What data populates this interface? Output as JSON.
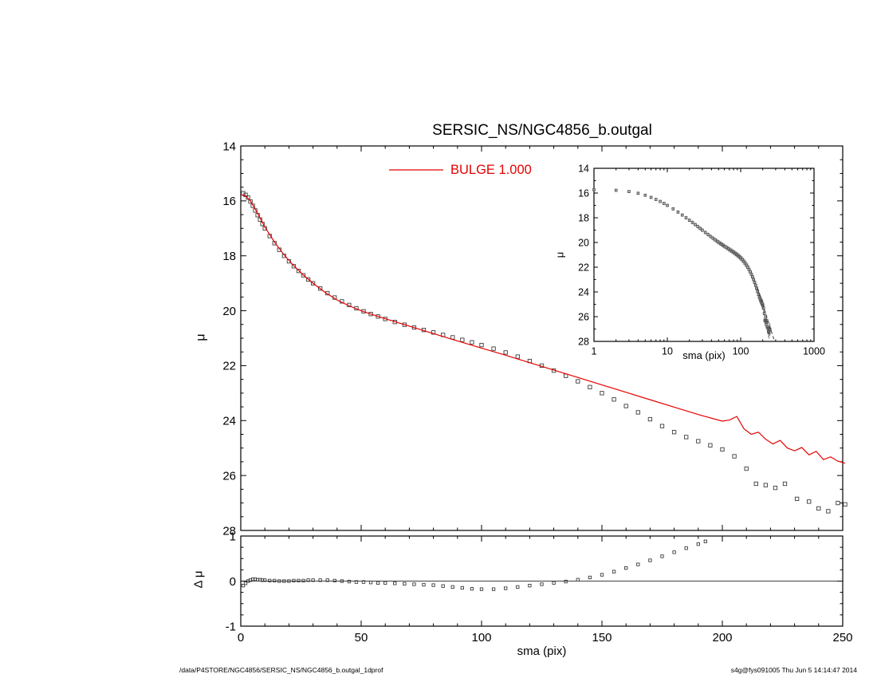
{
  "title": "SERSIC_NS/NGC4856_b.outgal",
  "legend": {
    "label": "BULGE  1.000",
    "color": "#e60000"
  },
  "footer": {
    "left": "/data/P4STORE/NGC4856/SERSIC_NS/NGC4856_b.outgal_1dprof",
    "right": "s4g@fys091005  Thu Jun  5 14:14:47 2014"
  },
  "colors": {
    "model": "#e60000",
    "data_marker": "#3c3c3c",
    "axis": "#000000",
    "error_bar": "#909090"
  },
  "chart_data": [
    {
      "type": "scatter",
      "name": "main-profile",
      "xlabel": "sma (pix)",
      "ylabel": "μ",
      "xlim": [
        0,
        250
      ],
      "ylim": [
        14,
        28
      ],
      "xticks": [
        0,
        50,
        100,
        150,
        200,
        250
      ],
      "yticks": [
        14,
        16,
        18,
        20,
        22,
        24,
        26,
        28
      ],
      "xminor": 10,
      "yminor": 0.5,
      "xlabels": false,
      "series": [
        {
          "name": "surface-brightness-data",
          "marker": "open-square",
          "size": 4.4,
          "color": "#3c3c3c",
          "x": [
            1,
            2,
            3,
            4,
            5,
            6,
            7,
            8,
            9,
            10,
            12,
            14,
            16,
            18,
            20,
            22,
            24,
            26,
            28,
            30,
            33,
            36,
            39,
            42,
            45,
            48,
            51,
            54,
            57,
            60,
            64,
            68,
            72,
            76,
            80,
            84,
            88,
            92,
            96,
            100,
            105,
            110,
            115,
            120,
            125,
            130,
            135,
            140,
            145,
            150,
            155,
            160,
            165,
            170,
            175,
            180,
            185,
            190,
            195,
            200,
            205,
            210,
            214,
            218,
            222,
            226,
            231,
            236,
            240,
            244,
            248,
            251
          ],
          "y": [
            15.72,
            15.78,
            15.88,
            16.02,
            16.18,
            16.35,
            16.52,
            16.68,
            16.84,
            17.0,
            17.28,
            17.54,
            17.78,
            18.0,
            18.2,
            18.38,
            18.55,
            18.71,
            18.86,
            19.0,
            19.19,
            19.36,
            19.52,
            19.66,
            19.79,
            19.91,
            20.02,
            20.12,
            20.21,
            20.3,
            20.41,
            20.51,
            20.61,
            20.7,
            20.79,
            20.88,
            20.97,
            21.06,
            21.15,
            21.25,
            21.38,
            21.52,
            21.67,
            21.83,
            22.0,
            22.18,
            22.37,
            22.57,
            22.78,
            23.0,
            23.23,
            23.47,
            23.7,
            23.95,
            24.2,
            24.42,
            24.6,
            24.75,
            24.9,
            25.05,
            25.3,
            25.75,
            26.3,
            26.35,
            26.45,
            26.3,
            26.85,
            26.95,
            27.2,
            27.3,
            27.0,
            27.05
          ]
        },
        {
          "name": "BULGE 1.000",
          "type": "line",
          "color": "#e60000",
          "width": 1.2,
          "x": [
            0,
            2,
            4,
            6,
            8,
            10,
            14,
            18,
            22,
            26,
            30,
            35,
            40,
            45,
            50,
            55,
            60,
            70,
            80,
            90,
            100,
            110,
            120,
            130,
            140,
            150,
            160,
            170,
            180,
            190,
            200,
            203,
            206,
            209,
            212,
            215,
            218,
            221,
            224,
            227,
            230,
            233,
            236,
            239,
            242,
            245,
            248,
            251
          ],
          "y": [
            15.78,
            15.82,
            16.0,
            16.3,
            16.62,
            16.95,
            17.5,
            17.97,
            18.36,
            18.7,
            19.0,
            19.33,
            19.61,
            19.82,
            20.0,
            20.15,
            20.29,
            20.56,
            20.83,
            21.1,
            21.36,
            21.62,
            21.89,
            22.16,
            22.43,
            22.7,
            22.97,
            23.24,
            23.51,
            23.78,
            24.02,
            23.98,
            23.85,
            24.3,
            24.5,
            24.42,
            24.68,
            24.85,
            24.72,
            25.0,
            25.1,
            24.98,
            25.25,
            25.12,
            25.42,
            25.32,
            25.48,
            25.55
          ]
        }
      ]
    },
    {
      "type": "scatter",
      "name": "inset-log-profile",
      "xscale": "log",
      "xlabel": "sma (pix)",
      "ylabel": "μ",
      "xlim": [
        1,
        1000
      ],
      "ylim": [
        14,
        28
      ],
      "xticks": [
        1,
        10,
        100,
        1000
      ],
      "yticks": [
        14,
        16,
        18,
        20,
        22,
        24,
        26,
        28
      ],
      "yminor": 1,
      "opaque": true,
      "error_model": {
        "base": 0.12,
        "slope": 0.0015
      },
      "series": [
        {
          "name": "surface-brightness-data-log",
          "ref": "0.0",
          "marker": "open-square",
          "size": 2.8,
          "color": "#555555",
          "errors": true,
          "error_color": "#909090"
        },
        {
          "name": "extrapolation-dashed",
          "type": "line",
          "color": "#333333",
          "width": 1,
          "dash": "4,3",
          "x": [
            170,
            290
          ],
          "y": [
            23.7,
            28.0
          ]
        }
      ]
    },
    {
      "type": "scatter",
      "name": "residual-panel",
      "xlabel": "sma (pix)",
      "ylabel": "Δ μ",
      "xlim": [
        0,
        250
      ],
      "ylim": [
        1,
        -1
      ],
      "xticks": [
        0,
        50,
        100,
        150,
        200,
        250
      ],
      "yticks": [
        1,
        0,
        -1
      ],
      "xminor": 10,
      "yminor": 0.25,
      "hline": 0,
      "series": [
        {
          "name": "residual-data",
          "marker": "open-square",
          "size": 3.4,
          "color": "#3c3c3c",
          "x": [
            1,
            2,
            3,
            4,
            5,
            6,
            7,
            8,
            9,
            10,
            12,
            14,
            16,
            18,
            20,
            22,
            24,
            26,
            28,
            30,
            33,
            36,
            39,
            42,
            45,
            48,
            51,
            54,
            57,
            60,
            64,
            68,
            72,
            76,
            80,
            84,
            88,
            92,
            96,
            100,
            105,
            110,
            115,
            120,
            125,
            130,
            135,
            140,
            145,
            150,
            155,
            160,
            165,
            170,
            175,
            180,
            185,
            190,
            193
          ],
          "y": [
            -0.1,
            -0.05,
            0.0,
            0.02,
            0.04,
            0.04,
            0.03,
            0.03,
            0.02,
            0.02,
            0.01,
            0.01,
            0.0,
            0.0,
            0.0,
            0.01,
            0.01,
            0.01,
            0.02,
            0.02,
            0.02,
            0.02,
            0.01,
            0.0,
            -0.01,
            -0.02,
            -0.02,
            -0.03,
            -0.04,
            -0.04,
            -0.05,
            -0.06,
            -0.07,
            -0.08,
            -0.09,
            -0.11,
            -0.13,
            -0.15,
            -0.17,
            -0.18,
            -0.18,
            -0.16,
            -0.13,
            -0.1,
            -0.07,
            -0.04,
            -0.01,
            0.03,
            0.08,
            0.14,
            0.21,
            0.29,
            0.37,
            0.46,
            0.55,
            0.64,
            0.73,
            0.82,
            0.88
          ]
        }
      ]
    }
  ]
}
